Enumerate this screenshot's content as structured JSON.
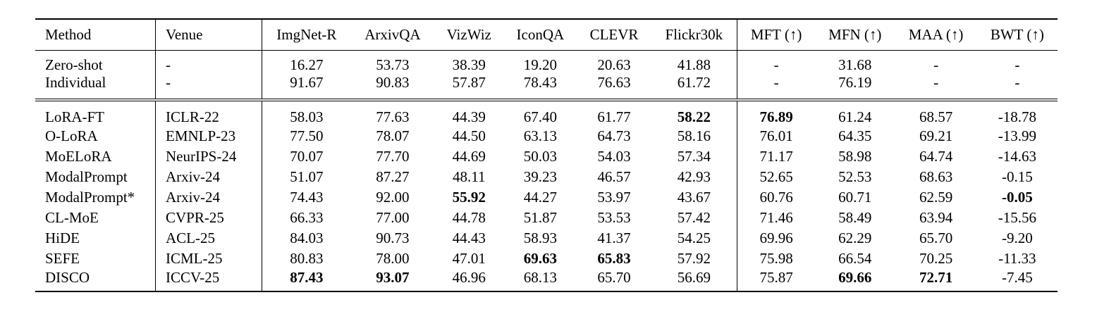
{
  "table": {
    "columns": [
      "Method",
      "Venue",
      "ImgNet-R",
      "ArxivQA",
      "VizWiz",
      "IconQA",
      "CLEVR",
      "Flickr30k",
      "MFT (↑)",
      "MFN (↑)",
      "MAA (↑)",
      "BWT (↑)"
    ],
    "baselines": [
      {
        "method": "Zero-shot",
        "venue": "-",
        "values": [
          "16.27",
          "53.73",
          "38.39",
          "19.20",
          "20.63",
          "41.88",
          "-",
          "31.68",
          "-",
          "-"
        ],
        "bold": []
      },
      {
        "method": "Individual",
        "venue": "-",
        "values": [
          "91.67",
          "90.83",
          "57.87",
          "78.43",
          "76.63",
          "61.72",
          "-",
          "76.19",
          "-",
          "-"
        ],
        "bold": []
      }
    ],
    "methods": [
      {
        "method": "LoRA-FT",
        "venue": "ICLR-22",
        "values": [
          "58.03",
          "77.63",
          "44.39",
          "67.40",
          "61.77",
          "58.22",
          "76.89",
          "61.24",
          "68.57",
          "-18.78"
        ],
        "bold": [
          5,
          6
        ]
      },
      {
        "method": "O-LoRA",
        "venue": "EMNLP-23",
        "values": [
          "77.50",
          "78.07",
          "44.50",
          "63.13",
          "64.73",
          "58.16",
          "76.01",
          "64.35",
          "69.21",
          "-13.99"
        ],
        "bold": []
      },
      {
        "method": "MoELoRA",
        "venue": "NeurIPS-24",
        "values": [
          "70.07",
          "77.70",
          "44.69",
          "50.03",
          "54.03",
          "57.34",
          "71.17",
          "58.98",
          "64.74",
          "-14.63"
        ],
        "bold": []
      },
      {
        "method": "ModalPrompt",
        "venue": "Arxiv-24",
        "values": [
          "51.07",
          "87.27",
          "48.11",
          "39.23",
          "46.57",
          "42.93",
          "52.65",
          "52.53",
          "68.63",
          "-0.15"
        ],
        "bold": []
      },
      {
        "method": "ModalPrompt*",
        "venue": "Arxiv-24",
        "values": [
          "74.43",
          "92.00",
          "55.92",
          "44.27",
          "53.97",
          "43.67",
          "60.76",
          "60.71",
          "62.59",
          "-0.05"
        ],
        "bold": [
          2,
          9
        ]
      },
      {
        "method": "CL-MoE",
        "venue": "CVPR-25",
        "values": [
          "66.33",
          "77.00",
          "44.78",
          "51.87",
          "53.53",
          "57.42",
          "71.46",
          "58.49",
          "63.94",
          "-15.56"
        ],
        "bold": []
      },
      {
        "method": "HiDE",
        "venue": "ACL-25",
        "values": [
          "84.03",
          "90.73",
          "44.43",
          "58.93",
          "41.37",
          "54.25",
          "69.96",
          "62.29",
          "65.70",
          "-9.20"
        ],
        "bold": []
      },
      {
        "method": "SEFE",
        "venue": "ICML-25",
        "values": [
          "80.83",
          "78.00",
          "47.01",
          "69.63",
          "65.83",
          "57.92",
          "75.98",
          "66.54",
          "70.25",
          "-11.33"
        ],
        "bold": [
          3,
          4
        ]
      },
      {
        "method": "DISCO",
        "venue": "ICCV-25",
        "values": [
          "87.43",
          "93.07",
          "46.96",
          "68.13",
          "65.70",
          "56.69",
          "75.87",
          "69.66",
          "72.71",
          "-7.45"
        ],
        "bold": [
          0,
          1,
          7,
          8
        ]
      }
    ]
  }
}
